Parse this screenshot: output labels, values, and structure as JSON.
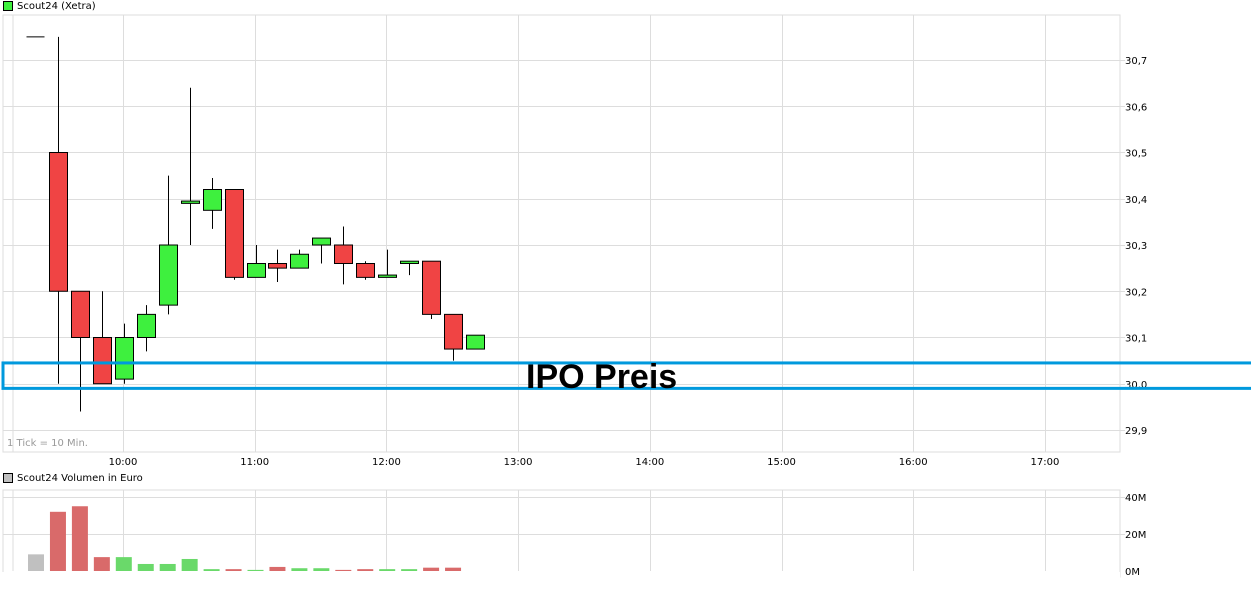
{
  "price_panel": {
    "legend_label": "Scout24 (Xetra)",
    "legend_color": "#3ef03e",
    "tick_note": "1 Tick = 10 Min.",
    "annotation": {
      "label": "IPO Preis",
      "color": "#0099dd",
      "price_low": 29.99,
      "price_high": 30.045
    }
  },
  "volume_panel": {
    "legend_label": "Scout24 Volumen in Euro",
    "legend_color": "#c0c0c0"
  },
  "colors": {
    "up": "#3ef03e",
    "down": "#f04444",
    "vol_up": "#6ad96a",
    "vol_down": "#d96a6a",
    "vol_neutral": "#c0c0c0",
    "grid": "#dddddd"
  },
  "chart_data": [
    {
      "type": "candlestick",
      "title": "Scout24 (Xetra)",
      "xlabel": "",
      "ylabel": "",
      "x_ticks": [
        "10:00",
        "11:00",
        "12:00",
        "13:00",
        "14:00",
        "15:00",
        "16:00",
        "17:00"
      ],
      "y_ticks": [
        "30,7",
        "30,6",
        "30,5",
        "30,4",
        "30,3",
        "30,2",
        "30,1",
        "30,0",
        "29,9"
      ],
      "ylim": [
        29.85,
        30.8
      ],
      "interval": "10 Min.",
      "grid": true,
      "candles": [
        {
          "time": "09:10",
          "open": 30.75,
          "high": 30.75,
          "low": 30.75,
          "close": 30.75
        },
        {
          "time": "09:20",
          "open": 30.5,
          "high": 30.75,
          "low": 30.0,
          "close": 30.2
        },
        {
          "time": "09:30",
          "open": 30.2,
          "high": 30.2,
          "low": 29.94,
          "close": 30.1
        },
        {
          "time": "09:40",
          "open": 30.1,
          "high": 30.2,
          "low": 30.0,
          "close": 30.0
        },
        {
          "time": "09:50",
          "open": 30.01,
          "high": 30.13,
          "low": 30.0,
          "close": 30.1
        },
        {
          "time": "10:00",
          "open": 30.1,
          "high": 30.17,
          "low": 30.07,
          "close": 30.15
        },
        {
          "time": "10:10",
          "open": 30.17,
          "high": 30.45,
          "low": 30.15,
          "close": 30.3
        },
        {
          "time": "10:20",
          "open": 30.39,
          "high": 30.64,
          "low": 30.3,
          "close": 30.395
        },
        {
          "time": "10:30",
          "open": 30.375,
          "high": 30.445,
          "low": 30.335,
          "close": 30.42
        },
        {
          "time": "10:40",
          "open": 30.42,
          "high": 30.42,
          "low": 30.225,
          "close": 30.23
        },
        {
          "time": "10:50",
          "open": 30.23,
          "high": 30.3,
          "low": 30.23,
          "close": 30.26
        },
        {
          "time": "11:00",
          "open": 30.26,
          "high": 30.29,
          "low": 30.22,
          "close": 30.25
        },
        {
          "time": "11:10",
          "open": 30.25,
          "high": 30.29,
          "low": 30.25,
          "close": 30.28
        },
        {
          "time": "11:20",
          "open": 30.3,
          "high": 30.315,
          "low": 30.26,
          "close": 30.315
        },
        {
          "time": "11:30",
          "open": 30.3,
          "high": 30.34,
          "low": 30.215,
          "close": 30.26
        },
        {
          "time": "11:40",
          "open": 30.26,
          "high": 30.265,
          "low": 30.225,
          "close": 30.23
        },
        {
          "time": "11:50",
          "open": 30.23,
          "high": 30.29,
          "low": 30.23,
          "close": 30.235
        },
        {
          "time": "12:00",
          "open": 30.26,
          "high": 30.265,
          "low": 30.235,
          "close": 30.265
        },
        {
          "time": "12:10",
          "open": 30.265,
          "high": 30.265,
          "low": 30.14,
          "close": 30.15
        },
        {
          "time": "12:20",
          "open": 30.15,
          "high": 30.15,
          "low": 30.05,
          "close": 30.075
        },
        {
          "time": "12:30",
          "open": 30.075,
          "high": 30.105,
          "low": 30.075,
          "close": 30.105
        }
      ]
    },
    {
      "type": "bar",
      "title": "Scout24 Volumen in Euro",
      "xlabel": "",
      "ylabel": "",
      "y_ticks": [
        "40M",
        "20M",
        "0M"
      ],
      "ylim": [
        0,
        40000000
      ],
      "grid": true,
      "categories": [
        "09:10",
        "09:20",
        "09:30",
        "09:40",
        "09:50",
        "10:00",
        "10:10",
        "10:20",
        "10:30",
        "10:40",
        "10:50",
        "11:00",
        "11:10",
        "11:20",
        "11:30",
        "11:40",
        "11:50",
        "12:00",
        "12:10",
        "12:20"
      ],
      "values": [
        9000000,
        32000000,
        35000000,
        7500000,
        7500000,
        3800000,
        3800000,
        6500000,
        1000000,
        1000000,
        600000,
        2200000,
        1500000,
        1500000,
        600000,
        1000000,
        1000000,
        1000000,
        1800000,
        1800000
      ],
      "bar_colors": [
        "neutral",
        "down",
        "down",
        "down",
        "up",
        "up",
        "up",
        "up",
        "up",
        "down",
        "up",
        "down",
        "up",
        "up",
        "down",
        "down",
        "up",
        "up",
        "down",
        "down"
      ]
    }
  ]
}
